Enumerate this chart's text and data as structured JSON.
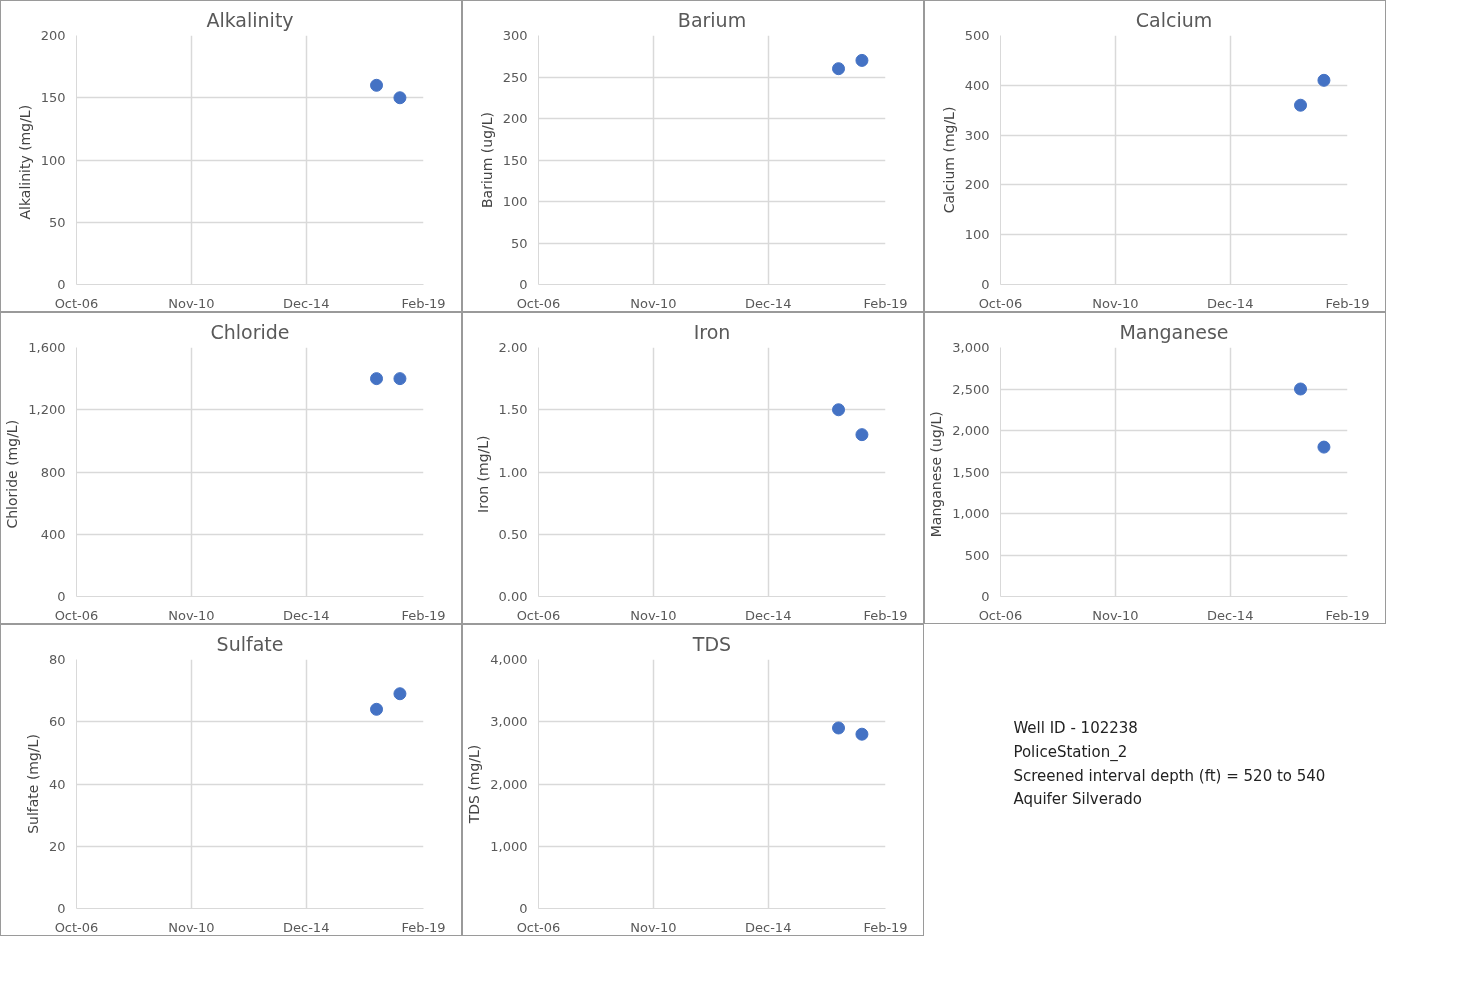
{
  "chart_data": [
    {
      "type": "scatter",
      "title": "Alkalinity",
      "ylabel": "Alkalinity  (mg/L)",
      "x": [
        "2017-06",
        "2018-04"
      ],
      "values": [
        160,
        150
      ],
      "color": "#4472c4",
      "marker": "circle",
      "xlim": [
        "2006-10",
        "2019-02"
      ],
      "xticks": [
        {
          "value": "2006-10",
          "label": "Oct-06"
        },
        {
          "value": "2010-11",
          "label": "Nov-10"
        },
        {
          "value": "2014-12",
          "label": "Dec-14"
        },
        {
          "value": "2019-02",
          "label": "Feb-19"
        }
      ],
      "ylim": [
        0,
        200
      ],
      "yticks": [
        0,
        50,
        100,
        150,
        200
      ],
      "grid": true
    },
    {
      "type": "scatter",
      "title": "Barium",
      "ylabel": "Barium (ug/L)",
      "x": [
        "2017-06",
        "2018-04"
      ],
      "values": [
        260,
        270
      ],
      "color": "#4472c4",
      "marker": "circle",
      "xlim": [
        "2006-10",
        "2019-02"
      ],
      "xticks": [
        {
          "value": "2006-10",
          "label": "Oct-06"
        },
        {
          "value": "2010-11",
          "label": "Nov-10"
        },
        {
          "value": "2014-12",
          "label": "Dec-14"
        },
        {
          "value": "2019-02",
          "label": "Feb-19"
        }
      ],
      "ylim": [
        0,
        300
      ],
      "yticks": [
        0,
        50,
        100,
        150,
        200,
        250,
        300
      ],
      "grid": true
    },
    {
      "type": "scatter",
      "title": "Calcium",
      "ylabel": "Calcium (mg/L)",
      "x": [
        "2017-06",
        "2018-04"
      ],
      "values": [
        360,
        410
      ],
      "color": "#4472c4",
      "marker": "circle",
      "xlim": [
        "2006-10",
        "2019-02"
      ],
      "xticks": [
        {
          "value": "2006-10",
          "label": "Oct-06"
        },
        {
          "value": "2010-11",
          "label": "Nov-10"
        },
        {
          "value": "2014-12",
          "label": "Dec-14"
        },
        {
          "value": "2019-02",
          "label": "Feb-19"
        }
      ],
      "ylim": [
        0,
        500
      ],
      "yticks": [
        0,
        100,
        200,
        300,
        400,
        500
      ],
      "grid": true
    },
    {
      "type": "scatter",
      "title": "Chloride",
      "ylabel": "Chloride  (mg/L)",
      "x": [
        "2017-06",
        "2018-04"
      ],
      "values": [
        1400,
        1400
      ],
      "color": "#4472c4",
      "marker": "circle",
      "xlim": [
        "2006-10",
        "2019-02"
      ],
      "xticks": [
        {
          "value": "2006-10",
          "label": "Oct-06"
        },
        {
          "value": "2010-11",
          "label": "Nov-10"
        },
        {
          "value": "2014-12",
          "label": "Dec-14"
        },
        {
          "value": "2019-02",
          "label": "Feb-19"
        }
      ],
      "ylim": [
        0,
        1600
      ],
      "yticks": [
        0,
        400,
        800,
        {
          "value": 1200,
          "label": "1,200"
        },
        {
          "value": 1600,
          "label": "1,600"
        }
      ],
      "grid": true
    },
    {
      "type": "scatter",
      "title": "Iron",
      "ylabel": "Iron  (mg/L)",
      "x": [
        "2017-06",
        "2018-04"
      ],
      "values": [
        1.5,
        1.3
      ],
      "color": "#4472c4",
      "marker": "circle",
      "xlim": [
        "2006-10",
        "2019-02"
      ],
      "xticks": [
        {
          "value": "2006-10",
          "label": "Oct-06"
        },
        {
          "value": "2010-11",
          "label": "Nov-10"
        },
        {
          "value": "2014-12",
          "label": "Dec-14"
        },
        {
          "value": "2019-02",
          "label": "Feb-19"
        }
      ],
      "ylim": [
        0,
        2
      ],
      "yticks": [
        {
          "value": 0,
          "label": "0.00"
        },
        {
          "value": 0.5,
          "label": "0.50"
        },
        {
          "value": 1,
          "label": "1.00"
        },
        {
          "value": 1.5,
          "label": "1.50"
        },
        {
          "value": 2,
          "label": "2.00"
        }
      ],
      "grid": true
    },
    {
      "type": "scatter",
      "title": "Manganese",
      "ylabel": "Manganese  (ug/L)",
      "x": [
        "2017-06",
        "2018-04"
      ],
      "values": [
        2500,
        1800
      ],
      "color": "#4472c4",
      "marker": "circle",
      "xlim": [
        "2006-10",
        "2019-02"
      ],
      "xticks": [
        {
          "value": "2006-10",
          "label": "Oct-06"
        },
        {
          "value": "2010-11",
          "label": "Nov-10"
        },
        {
          "value": "2014-12",
          "label": "Dec-14"
        },
        {
          "value": "2019-02",
          "label": "Feb-19"
        }
      ],
      "ylim": [
        0,
        3000
      ],
      "yticks": [
        0,
        500,
        {
          "value": 1000,
          "label": "1,000"
        },
        {
          "value": 1500,
          "label": "1,500"
        },
        {
          "value": 2000,
          "label": "2,000"
        },
        {
          "value": 2500,
          "label": "2,500"
        },
        {
          "value": 3000,
          "label": "3,000"
        }
      ],
      "grid": true
    },
    {
      "type": "scatter",
      "title": "Sulfate",
      "ylabel": "Sulfate (mg/L)",
      "x": [
        "2017-06",
        "2018-04"
      ],
      "values": [
        64,
        69
      ],
      "color": "#4472c4",
      "marker": "circle",
      "xlim": [
        "2006-10",
        "2019-02"
      ],
      "xticks": [
        {
          "value": "2006-10",
          "label": "Oct-06"
        },
        {
          "value": "2010-11",
          "label": "Nov-10"
        },
        {
          "value": "2014-12",
          "label": "Dec-14"
        },
        {
          "value": "2019-02",
          "label": "Feb-19"
        }
      ],
      "ylim": [
        0,
        80
      ],
      "yticks": [
        0,
        20,
        40,
        60,
        80
      ],
      "grid": true
    },
    {
      "type": "scatter",
      "title": "TDS",
      "ylabel": "TDS (mg/L)",
      "x": [
        "2017-06",
        "2018-04"
      ],
      "values": [
        2900,
        2800
      ],
      "color": "#4472c4",
      "marker": "circle",
      "xlim": [
        "2006-10",
        "2019-02"
      ],
      "xticks": [
        {
          "value": "2006-10",
          "label": "Oct-06"
        },
        {
          "value": "2010-11",
          "label": "Nov-10"
        },
        {
          "value": "2014-12",
          "label": "Dec-14"
        },
        {
          "value": "2019-02",
          "label": "Feb-19"
        }
      ],
      "ylim": [
        0,
        4000
      ],
      "yticks": [
        0,
        {
          "value": 1000,
          "label": "1,000"
        },
        {
          "value": 2000,
          "label": "2,000"
        },
        {
          "value": 3000,
          "label": "3,000"
        },
        {
          "value": 4000,
          "label": "4,000"
        }
      ],
      "grid": true
    },
    {
      "type": "other",
      "annotations": [
        "Well ID - 102238",
        "PoliceStation_2",
        "Screened interval depth (ft) =   520 to 540",
        "Aquifer   Silverado"
      ]
    }
  ]
}
